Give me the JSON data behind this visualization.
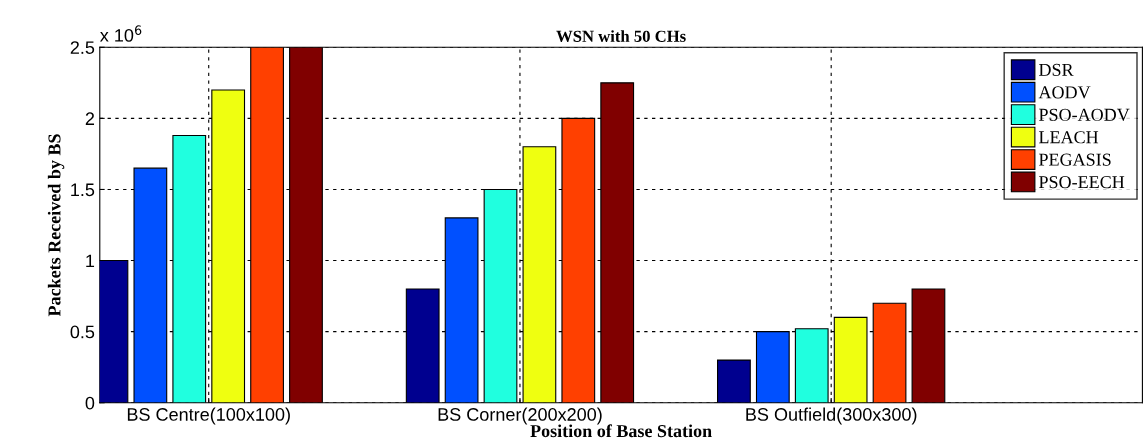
{
  "chart_data": {
    "type": "bar",
    "title": "WSN with 50 CHs",
    "xlabel": "Position of Base Station",
    "ylabel": "Packets Received by BS",
    "categories": [
      "BS Centre(100x100)",
      "BS Corner(200x200)",
      "BS Outfield(300x300)"
    ],
    "series": [
      {
        "name": "DSR",
        "color": "#00008f",
        "values": [
          1.0,
          0.8,
          0.3
        ]
      },
      {
        "name": "AODV",
        "color": "#0050ff",
        "values": [
          1.65,
          1.3,
          0.5
        ]
      },
      {
        "name": "PSO-AODV",
        "color": "#20ffdf",
        "values": [
          1.88,
          1.5,
          0.52
        ]
      },
      {
        "name": "LEACH",
        "color": "#efff10",
        "values": [
          2.2,
          1.8,
          0.6
        ]
      },
      {
        "name": "PEGASIS",
        "color": "#ff4000",
        "values": [
          2.5,
          2.0,
          0.7
        ]
      },
      {
        "name": "PSO-EECH",
        "color": "#800000",
        "values": [
          2.5,
          2.25,
          0.8
        ]
      }
    ],
    "ylim": [
      0,
      2.5
    ],
    "yticks": [
      0,
      0.5,
      1,
      1.5,
      2,
      2.5
    ],
    "annotations": [
      "x 10$^{6}$"
    ],
    "grid": true,
    "legend": "top right"
  }
}
